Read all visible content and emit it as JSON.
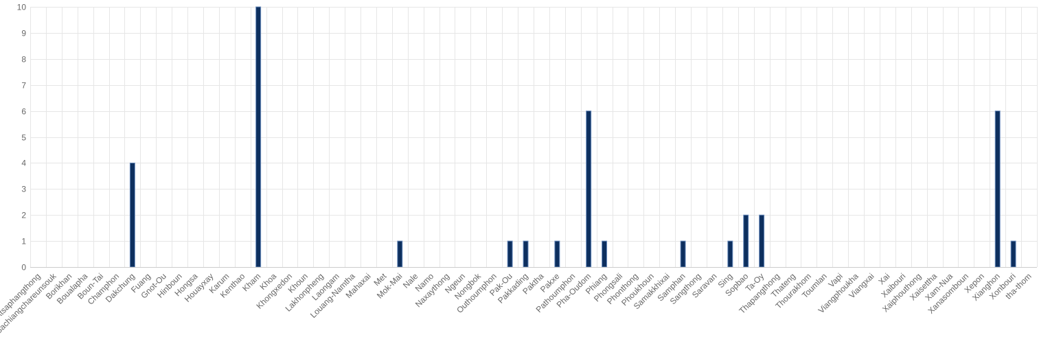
{
  "chart_data": {
    "type": "bar",
    "title": "",
    "xlabel": "",
    "ylabel": "",
    "ylim": [
      0,
      10
    ],
    "yticks": [
      0,
      1,
      2,
      3,
      4,
      5,
      6,
      7,
      8,
      9,
      10
    ],
    "grid": true,
    "bar_color": "#0d2f5e",
    "bar_edge_color": "#6d8fbf",
    "categories": [
      "Atsaphangthong",
      "Bachiangchareunsouk",
      "Borikhan",
      "Boualapha",
      "Boun-Tai",
      "Champhon",
      "Dakchung",
      "Fuang",
      "Gnot-Ou",
      "Hinboun",
      "Hongsa",
      "Houayxay",
      "Karum",
      "Kenthao",
      "Kham",
      "Khoa",
      "Khongxedon",
      "Khoun",
      "Lakhonpheng",
      "Laongam",
      "Louang-Namtha",
      "Mahaxai",
      "Met",
      "Mok-Mai",
      "Nale",
      "Namo",
      "Naxaythong",
      "Ngeun",
      "Nongbok",
      "Outhoumphon",
      "Pak-Ou",
      "Pakkading",
      "Paktha",
      "Pakxe",
      "Pathoumphon",
      "Pha-Oudom",
      "Phiang",
      "Phongsali",
      "Phonthong",
      "Phoukhoun",
      "Samakkhixai",
      "Samphan",
      "Sangthong",
      "Saravan",
      "Sing",
      "Sopbao",
      "Ta-Oy",
      "Thapangthong",
      "Thateng",
      "Thourakhom",
      "Toumlan",
      "Vapi",
      "Viangphoukha",
      "Viangxai",
      "Xai",
      "Xaibouri",
      "Xaiphouthong",
      "Xaisettha",
      "Xam-Nua",
      "Xanasomboun",
      "Xepon",
      "Xianghon",
      "Xonbouri",
      "tha-thom"
    ],
    "values": [
      0,
      0,
      0,
      0,
      0,
      0,
      4,
      0,
      0,
      0,
      0,
      0,
      0,
      0,
      10,
      0,
      0,
      0,
      0,
      0,
      0,
      0,
      0,
      1,
      0,
      0,
      0,
      0,
      0,
      0,
      1,
      1,
      0,
      1,
      0,
      6,
      1,
      0,
      0,
      0,
      0,
      1,
      0,
      0,
      1,
      2,
      2,
      0,
      0,
      0,
      0,
      0,
      0,
      0,
      0,
      0,
      0,
      0,
      0,
      0,
      0,
      6,
      1,
      0
    ]
  }
}
